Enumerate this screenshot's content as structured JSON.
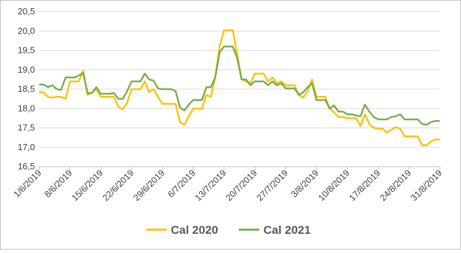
{
  "chart_data": {
    "type": "line",
    "categories": [
      "1/6/2019",
      null,
      null,
      null,
      null,
      null,
      null,
      "8/6/2019",
      null,
      null,
      null,
      null,
      null,
      null,
      "15/6/2019",
      null,
      null,
      null,
      null,
      null,
      null,
      "22/6/2019",
      null,
      null,
      null,
      null,
      null,
      null,
      "29/6/2019",
      null,
      null,
      null,
      null,
      null,
      null,
      "6/7/2019",
      null,
      null,
      null,
      null,
      null,
      null,
      "13/7/2019",
      null,
      null,
      null,
      null,
      null,
      null,
      "20/7/2019",
      null,
      null,
      null,
      null,
      null,
      null,
      "27/7/2019",
      null,
      null,
      null,
      null,
      null,
      null,
      "3/8/2019",
      null,
      null,
      null,
      null,
      null,
      null,
      "10/8/2019",
      null,
      null,
      null,
      null,
      null,
      null,
      "17/8/2019",
      null,
      null,
      null,
      null,
      null,
      null,
      "24/8/2019",
      null,
      null,
      null,
      null,
      null,
      null,
      "31/8/2019"
    ],
    "series": [
      {
        "name": "Cal 2020",
        "color": "#ffc000",
        "values": [
          18.42,
          18.42,
          18.3,
          18.28,
          18.3,
          18.3,
          18.25,
          18.7,
          18.7,
          18.7,
          18.98,
          18.35,
          18.4,
          18.5,
          18.3,
          18.3,
          18.3,
          18.3,
          18.05,
          17.98,
          18.15,
          18.5,
          18.5,
          18.5,
          18.7,
          18.42,
          18.5,
          18.3,
          18.12,
          18.12,
          18.12,
          18.12,
          17.65,
          17.58,
          17.8,
          18.0,
          18.0,
          18.0,
          18.35,
          18.3,
          18.8,
          19.6,
          20.02,
          20.02,
          20.02,
          19.4,
          18.75,
          18.7,
          18.65,
          18.9,
          18.9,
          18.9,
          18.7,
          18.8,
          18.65,
          18.7,
          18.6,
          18.6,
          18.6,
          18.35,
          18.28,
          18.45,
          18.75,
          18.3,
          18.3,
          18.3,
          18.0,
          17.9,
          17.78,
          17.78,
          17.75,
          17.75,
          17.75,
          17.55,
          17.85,
          17.6,
          17.5,
          17.48,
          17.48,
          17.38,
          17.45,
          17.52,
          17.48,
          17.28,
          17.28,
          17.28,
          17.28,
          17.05,
          17.05,
          17.15,
          17.2,
          17.2
        ]
      },
      {
        "name": "Cal 2021",
        "color": "#77ac48",
        "values": [
          18.62,
          18.62,
          18.55,
          18.6,
          18.5,
          18.48,
          18.8,
          18.8,
          18.8,
          18.85,
          18.92,
          18.4,
          18.4,
          18.55,
          18.38,
          18.38,
          18.38,
          18.4,
          18.25,
          18.25,
          18.45,
          18.7,
          18.7,
          18.7,
          18.9,
          18.75,
          18.72,
          18.52,
          18.5,
          18.5,
          18.5,
          18.45,
          18.02,
          17.95,
          18.1,
          18.22,
          18.22,
          18.22,
          18.55,
          18.55,
          18.8,
          19.45,
          19.6,
          19.6,
          19.6,
          19.3,
          18.75,
          18.75,
          18.6,
          18.7,
          18.7,
          18.7,
          18.6,
          18.7,
          18.6,
          18.65,
          18.52,
          18.52,
          18.52,
          18.35,
          18.42,
          18.55,
          18.65,
          18.22,
          18.22,
          18.22,
          18.0,
          18.08,
          17.92,
          17.92,
          17.85,
          17.85,
          17.82,
          17.8,
          18.1,
          17.92,
          17.78,
          17.72,
          17.72,
          17.72,
          17.78,
          17.8,
          17.85,
          17.72,
          17.72,
          17.72,
          17.72,
          17.6,
          17.58,
          17.65,
          17.68,
          17.68
        ]
      }
    ],
    "ylim": [
      16.5,
      20.5
    ],
    "yticks": [
      {
        "value": 16.5,
        "label": "16,5"
      },
      {
        "value": 17,
        "label": "17,0"
      },
      {
        "value": 17.5,
        "label": "17,5"
      },
      {
        "value": 18,
        "label": "18,0"
      },
      {
        "value": 18.5,
        "label": "18,5"
      },
      {
        "value": 19,
        "label": "19,0"
      },
      {
        "value": 19.5,
        "label": "19,5"
      },
      {
        "value": 20,
        "label": "20,0"
      },
      {
        "value": 20.5,
        "label": "20,5"
      }
    ],
    "grid": true,
    "legend": "bottom"
  }
}
